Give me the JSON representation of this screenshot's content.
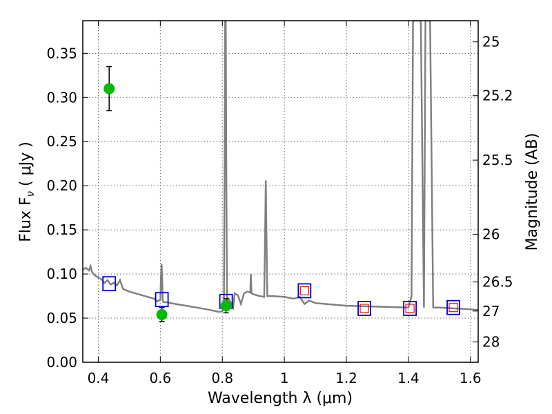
{
  "chart_data": {
    "type": "scatter",
    "xlabel": "Wavelength  λ (μm)",
    "ylabel_left": "Flux  F",
    "ylabel_left_sub": "ν",
    "ylabel_left_unit": " ( μJy )",
    "ylabel_right": "Magnitude (AB)",
    "xlim": [
      0.35,
      1.625
    ],
    "ylim": [
      0.0,
      0.387
    ],
    "grid": true,
    "x_ticks": [
      0.4,
      0.6,
      0.8,
      1.0,
      1.2,
      1.4,
      1.6
    ],
    "x_tick_labels": [
      "0.4",
      "0.6",
      "0.8",
      "1",
      "1.2",
      "1.4",
      "1.6"
    ],
    "y_ticks": [
      0.0,
      0.05,
      0.1,
      0.15,
      0.2,
      0.25,
      0.3,
      0.35
    ],
    "y_tick_labels": [
      "0.00",
      "0.05",
      "0.10",
      "0.15",
      "0.20",
      "0.25",
      "0.30",
      "0.35"
    ],
    "right_axis_ticks": [
      {
        "flux": 0.363,
        "label": "25"
      },
      {
        "flux": 0.302,
        "label": "25.2"
      },
      {
        "flux": 0.229,
        "label": "25.5"
      },
      {
        "flux": 0.145,
        "label": "26"
      },
      {
        "flux": 0.091,
        "label": "26.5"
      },
      {
        "flux": 0.058,
        "label": "27"
      },
      {
        "flux": 0.023,
        "label": "28"
      }
    ],
    "series": [
      {
        "kind": "line",
        "color": "#808080",
        "x": [
          0.35,
          0.36,
          0.37,
          0.375,
          0.38,
          0.39,
          0.4,
          0.41,
          0.42,
          0.43,
          0.44,
          0.45,
          0.46,
          0.47,
          0.48,
          0.5,
          0.52,
          0.55,
          0.58,
          0.59,
          0.6,
          0.602,
          0.604,
          0.606,
          0.608,
          0.61,
          0.62,
          0.65,
          0.7,
          0.75,
          0.79,
          0.8,
          0.805,
          0.807,
          0.809,
          0.811,
          0.813,
          0.815,
          0.82,
          0.83,
          0.835,
          0.84,
          0.85,
          0.86,
          0.87,
          0.88,
          0.89,
          0.892,
          0.894,
          0.9,
          0.92,
          0.935,
          0.938,
          0.94,
          0.942,
          0.945,
          0.96,
          1.0,
          1.03,
          1.05,
          1.065,
          1.08,
          1.1,
          1.2,
          1.3,
          1.4,
          1.41,
          1.415,
          1.42,
          1.44,
          1.45,
          1.455,
          1.46,
          1.47,
          1.48,
          1.5,
          1.55,
          1.6,
          1.625
        ],
        "y": [
          0.105,
          0.107,
          0.104,
          0.109,
          0.102,
          0.098,
          0.096,
          0.094,
          0.09,
          0.093,
          0.088,
          0.09,
          0.087,
          0.093,
          0.083,
          0.08,
          0.078,
          0.075,
          0.072,
          0.069,
          0.071,
          0.096,
          0.111,
          0.094,
          0.07,
          0.068,
          0.068,
          0.066,
          0.063,
          0.06,
          0.057,
          0.058,
          0.062,
          0.2,
          0.387,
          0.387,
          0.2,
          0.07,
          0.072,
          0.066,
          0.062,
          0.078,
          0.076,
          0.066,
          0.078,
          0.08,
          0.079,
          0.1,
          0.078,
          0.077,
          0.075,
          0.074,
          0.15,
          0.206,
          0.15,
          0.075,
          0.075,
          0.074,
          0.072,
          0.074,
          0.066,
          0.07,
          0.067,
          0.064,
          0.063,
          0.062,
          0.075,
          0.387,
          0.387,
          0.387,
          0.062,
          0.387,
          0.387,
          0.387,
          0.062,
          0.062,
          0.061,
          0.06,
          0.059
        ]
      },
      {
        "kind": "open-square",
        "color": "#0000cc",
        "x": [
          0.435,
          0.605,
          0.812,
          1.065,
          1.258,
          1.405,
          1.545
        ],
        "y": [
          0.089,
          0.071,
          0.069,
          0.081,
          0.061,
          0.061,
          0.062
        ]
      },
      {
        "kind": "open-square-small",
        "color": "#ff0000",
        "x": [
          1.065,
          1.258,
          1.405,
          1.545
        ],
        "y": [
          0.081,
          0.061,
          0.061,
          0.062
        ]
      },
      {
        "kind": "filled-circle",
        "color": "#00bb00",
        "x": [
          0.435,
          0.605,
          0.812
        ],
        "y": [
          0.31,
          0.054,
          0.064
        ],
        "yerr": [
          0.025,
          0.008,
          0.008
        ]
      }
    ]
  }
}
